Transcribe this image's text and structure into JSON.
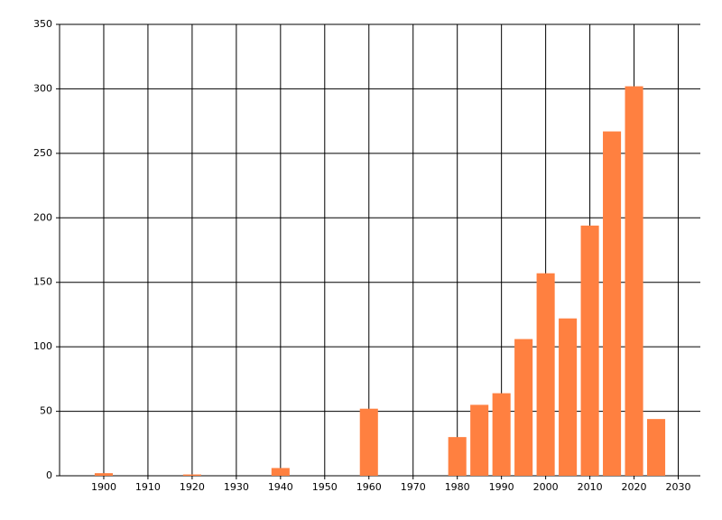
{
  "chart_data": {
    "type": "bar",
    "x": [
      1900,
      1920,
      1940,
      1960,
      1980,
      1985,
      1990,
      1995,
      2000,
      2005,
      2010,
      2015,
      2020,
      2025
    ],
    "values": [
      2,
      1,
      6,
      52,
      30,
      55,
      64,
      106,
      157,
      122,
      194,
      267,
      302,
      44
    ],
    "color": "#ff8040",
    "xlim": [
      1890,
      2035
    ],
    "xticks": [
      1900,
      1910,
      1920,
      1930,
      1940,
      1950,
      1960,
      1970,
      1980,
      1990,
      2000,
      2010,
      2020,
      2030
    ],
    "ylim": [
      0,
      350
    ],
    "yticks": [
      0,
      50,
      100,
      150,
      200,
      250,
      300,
      350
    ],
    "grid": true
  }
}
